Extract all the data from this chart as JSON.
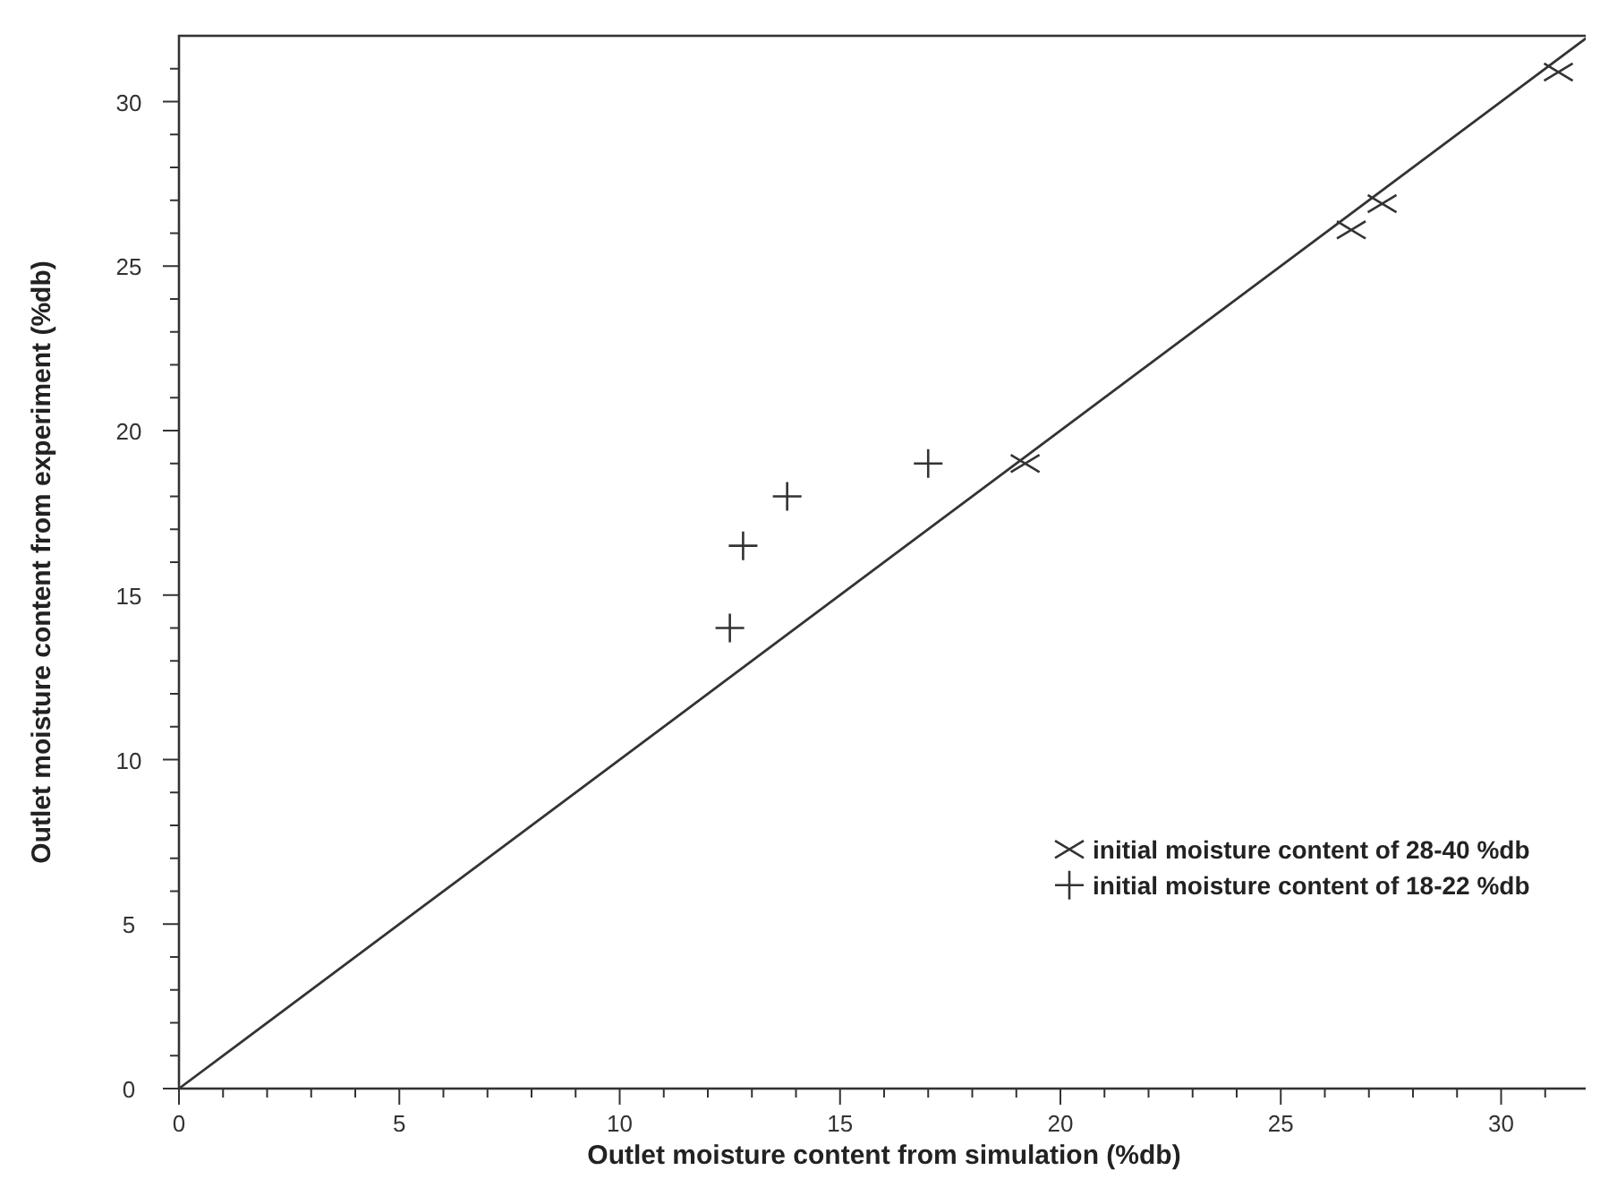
{
  "chart_data": {
    "type": "scatter",
    "xlabel": "Outlet moisture content from simulation (%db)",
    "ylabel": "Outlet moisture content from experiment (%db)",
    "xlim": [
      0,
      32
    ],
    "ylim": [
      0,
      32
    ],
    "xticks": [
      0,
      {
        "value": 1,
        "label": null
      },
      {
        "value": 2,
        "label": null
      },
      {
        "value": 3,
        "label": null
      },
      {
        "value": 4,
        "label": null
      },
      5,
      {
        "value": 6,
        "label": null
      },
      {
        "value": 7,
        "label": null
      },
      {
        "value": 8,
        "label": null
      },
      {
        "value": 9,
        "label": null
      },
      10,
      {
        "value": 11,
        "label": null
      },
      {
        "value": 12,
        "label": null
      },
      {
        "value": 13,
        "label": null
      },
      {
        "value": 14,
        "label": null
      },
      15,
      {
        "value": 16,
        "label": null
      },
      {
        "value": 17,
        "label": null
      },
      {
        "value": 18,
        "label": null
      },
      {
        "value": 19,
        "label": null
      },
      20,
      {
        "value": 21,
        "label": null
      },
      {
        "value": 22,
        "label": null
      },
      {
        "value": 23,
        "label": null
      },
      {
        "value": 24,
        "label": null
      },
      25,
      {
        "value": 26,
        "label": null
      },
      {
        "value": 27,
        "label": null
      },
      {
        "value": 28,
        "label": null
      },
      {
        "value": 29,
        "label": null
      },
      30,
      {
        "value": 31,
        "label": null
      }
    ],
    "yticks": [
      0,
      {
        "value": 1,
        "label": null
      },
      {
        "value": 2,
        "label": null
      },
      {
        "value": 3,
        "label": null
      },
      {
        "value": 4,
        "label": null
      },
      5,
      {
        "value": 6,
        "label": null
      },
      {
        "value": 7,
        "label": null
      },
      {
        "value": 8,
        "label": null
      },
      {
        "value": 9,
        "label": null
      },
      10,
      {
        "value": 11,
        "label": null
      },
      {
        "value": 12,
        "label": null
      },
      {
        "value": 13,
        "label": null
      },
      {
        "value": 14,
        "label": null
      },
      15,
      {
        "value": 16,
        "label": null
      },
      {
        "value": 17,
        "label": null
      },
      {
        "value": 18,
        "label": null
      },
      {
        "value": 19,
        "label": null
      },
      20,
      {
        "value": 21,
        "label": null
      },
      {
        "value": 22,
        "label": null
      },
      {
        "value": 23,
        "label": null
      },
      {
        "value": 24,
        "label": null
      },
      25,
      {
        "value": 26,
        "label": null
      },
      {
        "value": 27,
        "label": null
      },
      {
        "value": 28,
        "label": null
      },
      {
        "value": 29,
        "label": null
      },
      30,
      {
        "value": 31,
        "label": null
      }
    ],
    "grid": false,
    "legend": "bottom right",
    "series": [
      {
        "name": "initial moisture content of 28-40 %db",
        "color": "#333333",
        "marker": "x",
        "x": [
          19.2,
          26.6,
          27.3,
          31.3
        ],
        "values": [
          19.0,
          26.1,
          26.9,
          30.9
        ]
      },
      {
        "name": "initial moisture content of 18-22 %db",
        "color": "#333333",
        "marker": "cross",
        "x": [
          12.5,
          12.8,
          13.8,
          17.0
        ],
        "values": [
          14.0,
          16.5,
          18.0,
          19.0
        ]
      },
      {
        "type": "line",
        "color": "#333333",
        "marker": "none",
        "x": [
          0,
          32
        ],
        "values": [
          0,
          32
        ]
      }
    ]
  }
}
